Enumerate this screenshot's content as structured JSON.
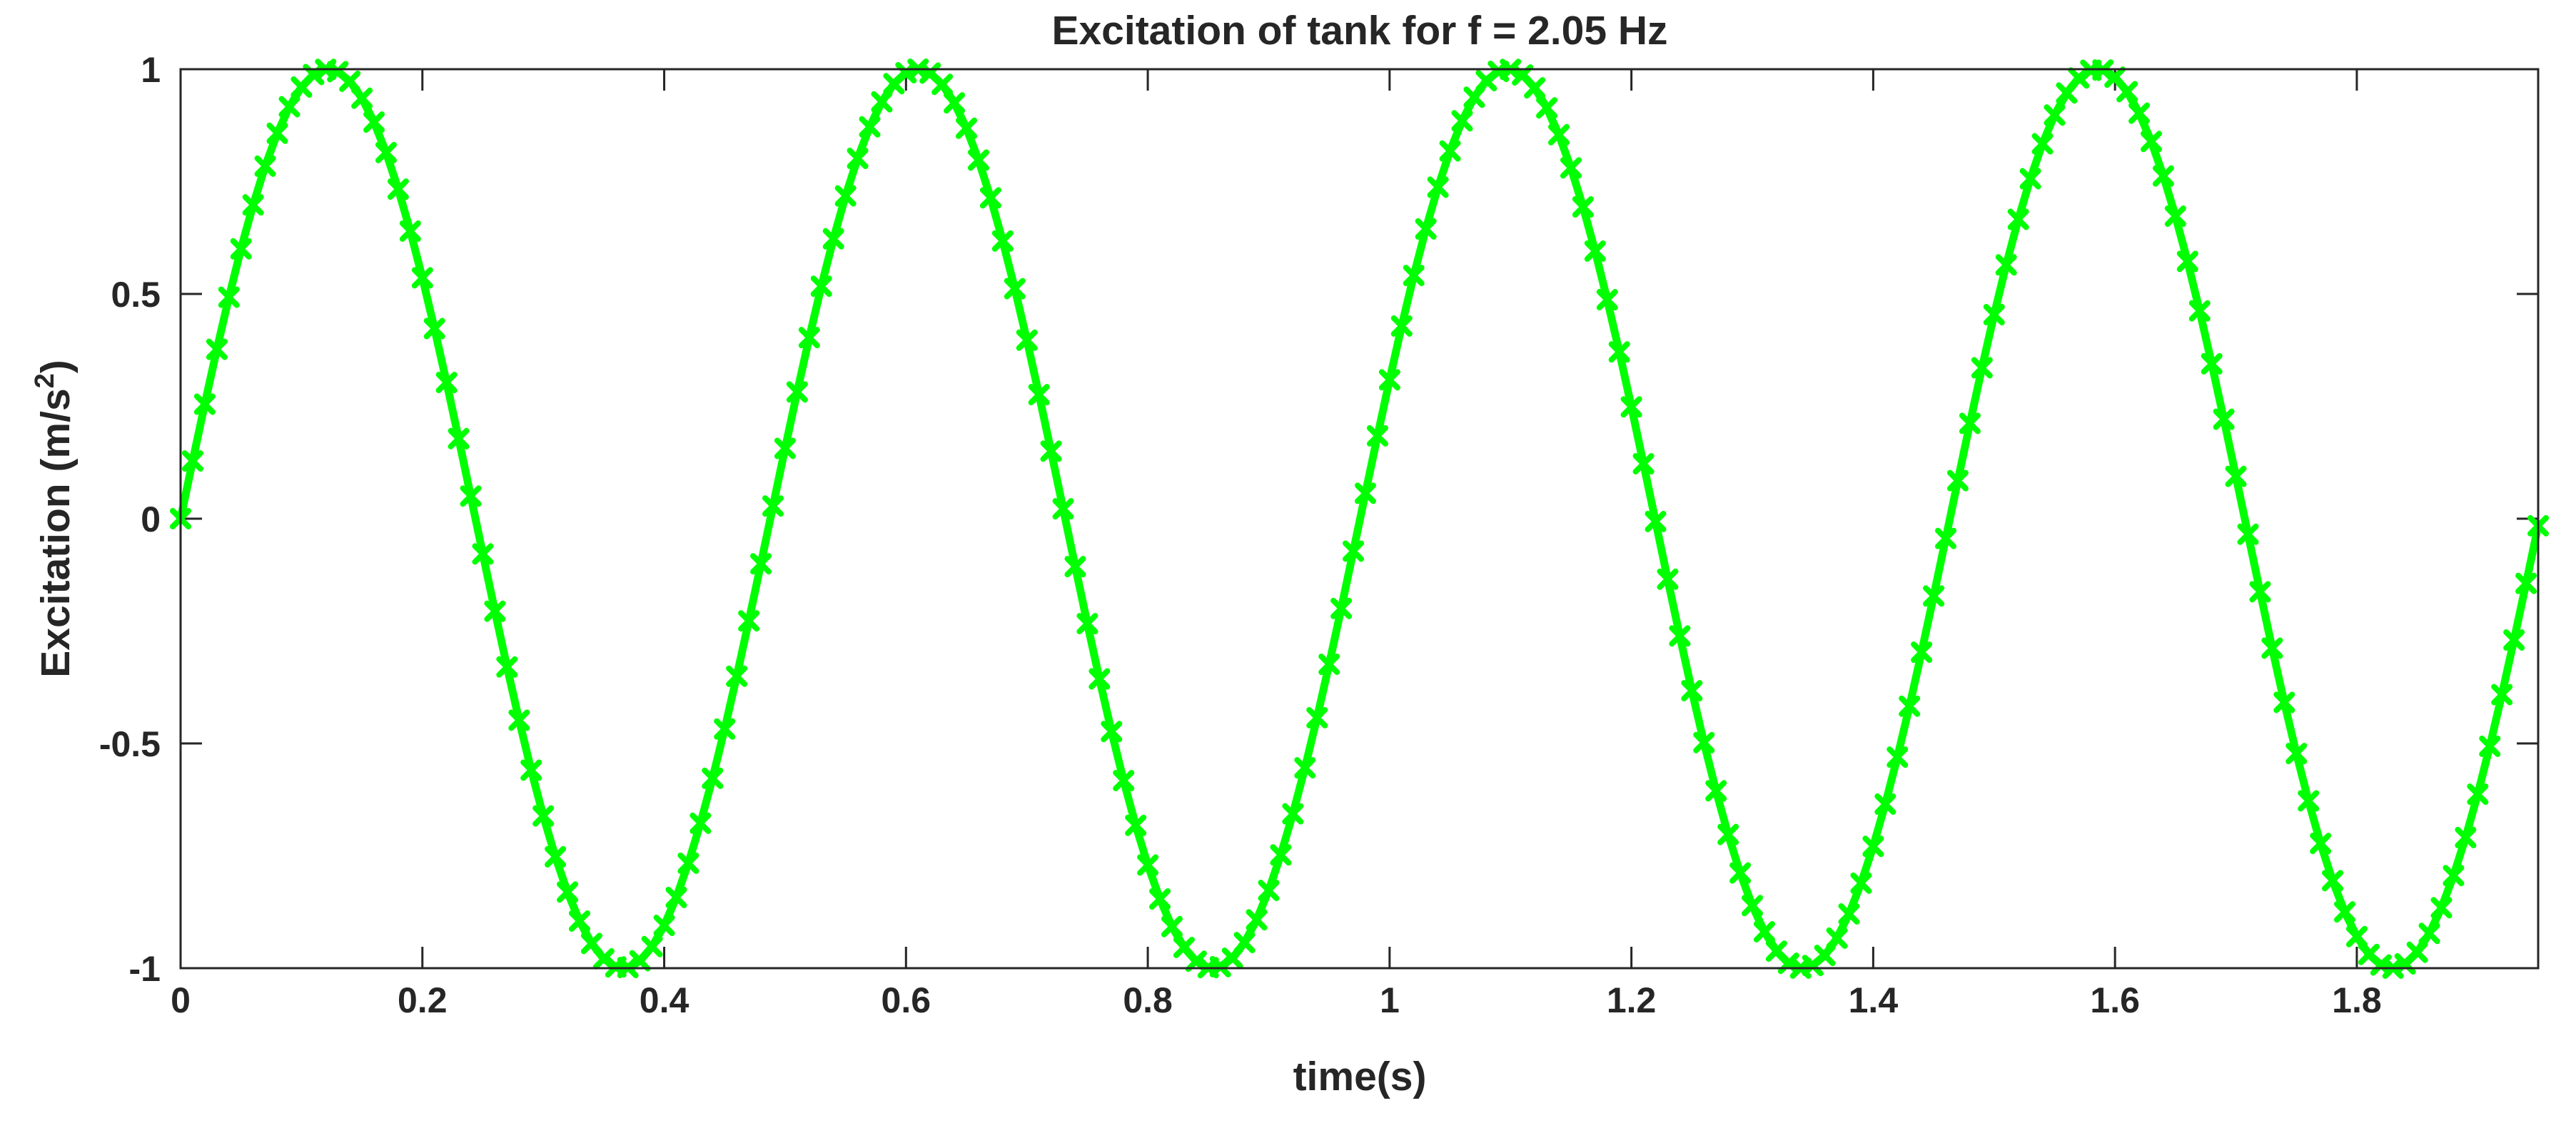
{
  "chart_data": {
    "type": "line",
    "title": "Excitation of tank for f = 2.05 Hz",
    "xlabel": "time(s)",
    "ylabel_main": "Excitation (m/s",
    "ylabel_sup": "2",
    "ylabel_close": ")",
    "xlim": [
      0,
      1.95
    ],
    "ylim": [
      -1,
      1
    ],
    "xticks": [
      0,
      0.2,
      0.4,
      0.6,
      0.8,
      1,
      1.2,
      1.4,
      1.6,
      1.8
    ],
    "xtick_labels": [
      "0",
      "0.2",
      "0.4",
      "0.6",
      "0.8",
      "1",
      "1.2",
      "1.4",
      "1.6",
      "1.8"
    ],
    "yticks": [
      -1,
      -0.5,
      0,
      0.5,
      1
    ],
    "ytick_labels": [
      "-1",
      "-0.5",
      "0",
      "0.5",
      "1"
    ],
    "grid": false,
    "series": [
      {
        "name": "excitation",
        "function": "sin(2*pi*f*t)",
        "frequency_hz": 2.05,
        "amplitude": 1,
        "t_start": 0,
        "t_end": 1.95,
        "sample_step": 0.01,
        "color": "#00FF00",
        "marker": "x"
      }
    ]
  }
}
